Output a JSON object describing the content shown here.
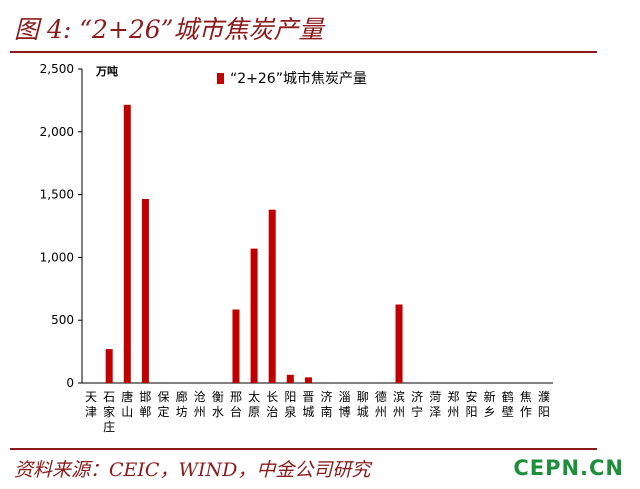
{
  "title": "图 4: “2+26”城市焦炭产量",
  "source": "资料来源：CEIC，WIND，中金公司研究",
  "watermark": "CEPN.CN",
  "colors": {
    "bar": "#C00000",
    "accent": "#8B1A1A",
    "watermark": "#1d8f3a"
  },
  "chart_data": {
    "type": "bar",
    "unit_label": "万吨",
    "ylim": [
      0,
      2500
    ],
    "yticks": [
      "0",
      "500",
      "1,000",
      "1,500",
      "2,000",
      "2,500"
    ],
    "ytick_values": [
      0,
      500,
      1000,
      1500,
      2000,
      2500
    ],
    "legend": {
      "position": "top",
      "label": "“2+26”城市焦炭产量"
    },
    "grid": false,
    "categories": [
      "天津",
      "石家庄",
      "唐山",
      "邯郸",
      "保定",
      "廊坊",
      "沧州",
      "衡水",
      "邢台",
      "太原",
      "长治",
      "阳泉",
      "晋城",
      "济南",
      "淄博",
      "聊城",
      "德州",
      "滨州",
      "济宁",
      "菏泽",
      "郑州",
      "安阳",
      "新乡",
      "鹤壁",
      "焦作",
      "濮阳"
    ],
    "series": [
      {
        "name": "“2+26”城市焦炭产量",
        "values": [
          0,
          270,
          2215,
          1465,
          0,
          0,
          0,
          0,
          585,
          1070,
          1380,
          65,
          45,
          0,
          0,
          0,
          0,
          625,
          0,
          0,
          0,
          0,
          0,
          0,
          0,
          0
        ]
      }
    ]
  }
}
